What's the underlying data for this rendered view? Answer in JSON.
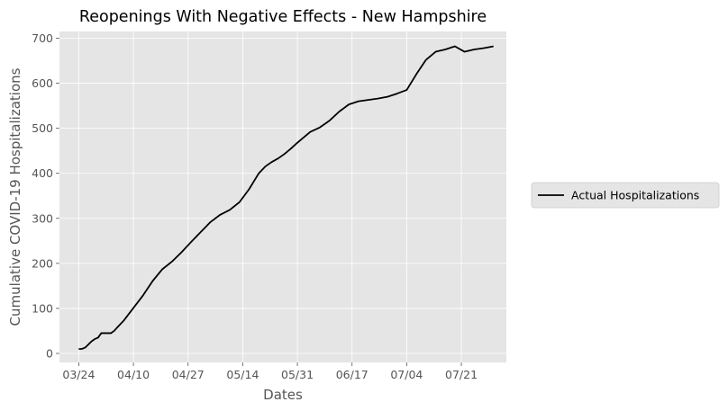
{
  "chart_data": {
    "type": "line",
    "title": "Reopenings With Negative Effects - New Hampshire",
    "xlabel": "Dates",
    "ylabel": "Cumulative COVID-19 Hospitalizations",
    "x_tick_labels": [
      "03/24",
      "04/10",
      "04/27",
      "05/14",
      "05/31",
      "06/17",
      "07/04",
      "07/21"
    ],
    "x_tick_days": [
      0,
      17,
      34,
      51,
      68,
      85,
      102,
      119
    ],
    "xlim": [
      -6,
      133
    ],
    "y_ticks": [
      0,
      100,
      200,
      300,
      400,
      500,
      600,
      700
    ],
    "ylim": [
      -20,
      715
    ],
    "grid": true,
    "legend_position": "right",
    "colors": {
      "plot_background": "#e5e5e5",
      "grid": "#ffffff",
      "line": "#000000"
    },
    "series": [
      {
        "name": "Actual Hospitalizations",
        "x": [
          0,
          1,
          2,
          3,
          4,
          5,
          6,
          7,
          8,
          9,
          10,
          11,
          12,
          14,
          17,
          20,
          23,
          26,
          29,
          32,
          35,
          38,
          41,
          44,
          47,
          50,
          53,
          56,
          58,
          60,
          62,
          64,
          66,
          68,
          70,
          72,
          75,
          78,
          81,
          84,
          87,
          90,
          93,
          96,
          99,
          102,
          105,
          108,
          111,
          114,
          117,
          120,
          123,
          126,
          129
        ],
        "y": [
          10,
          10,
          13,
          20,
          27,
          32,
          35,
          45,
          45,
          45,
          45,
          50,
          58,
          73,
          101,
          129,
          161,
          187,
          204,
          225,
          248,
          270,
          292,
          308,
          319,
          336,
          365,
          400,
          415,
          425,
          433,
          443,
          455,
          468,
          480,
          492,
          502,
          517,
          537,
          553,
          560,
          563,
          566,
          570,
          577,
          585,
          620,
          652,
          670,
          675,
          682,
          670,
          675,
          678,
          682
        ]
      }
    ]
  }
}
